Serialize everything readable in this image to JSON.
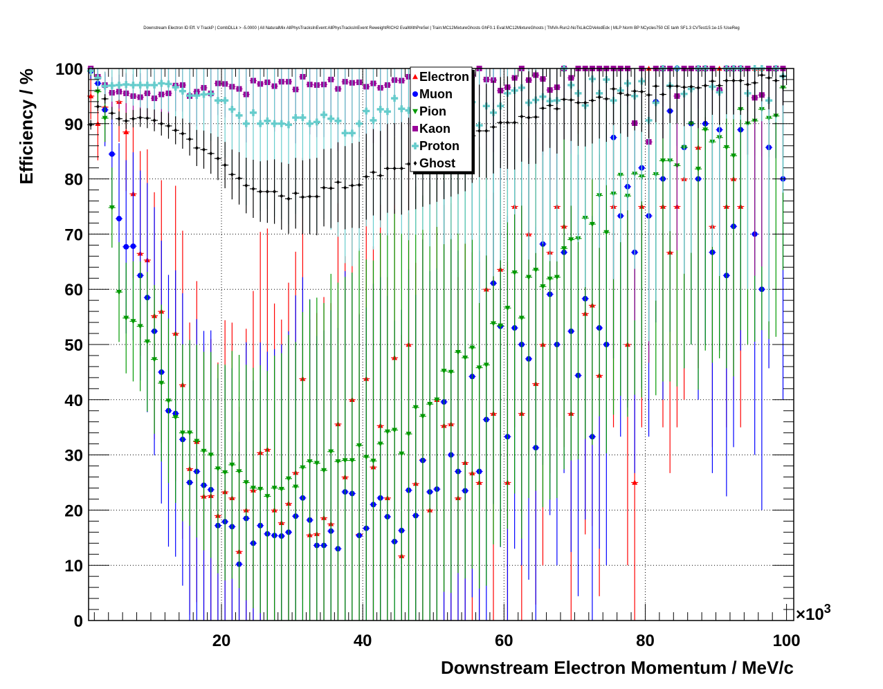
{
  "chart_data": {
    "type": "scatter",
    "title": "Downstream Electron ID Eff. V TrackP | CombDLLk > -5.0000 | All NaturalMix AllPhysTracksInEvent:AllPhysTracksInEvent ReweightRICH2 EvalWithPreSel | Train:MC12MixtureGhosts GhF0.1 Eval:MC12MixtureGhosts | TMVA-Run2-NoTkLikCDVelodEdx | MLP Norm BP NCycles750 CE tanh SF1.3 CVTest15:1e-15 !UseReg",
    "xlabel": "Downstream Electron Momentum / MeV/c",
    "ylabel": "Efficiency / %",
    "x_multiplier_label": "×10",
    "x_multiplier_exponent": "3",
    "xlim": [
      1.2,
      101
    ],
    "ylim": [
      0,
      100
    ],
    "xticks": [
      "20",
      "40",
      "60",
      "80",
      "100"
    ],
    "yticks": [
      "0",
      "10",
      "20",
      "30",
      "40",
      "50",
      "60",
      "70",
      "80",
      "90",
      "100"
    ],
    "grid": true,
    "legend_position": "top-center",
    "x_bins": {
      "start": 1.5,
      "step": 1,
      "count": 99
    },
    "series": [
      {
        "name": "Electron",
        "color": "#ff0000",
        "marker": "triangle-up",
        "values": [
          95,
          90,
          93,
          null,
          94,
          88.5,
          77.3,
          66.5,
          65.3,
          55.2,
          56,
          null,
          52,
          42.7,
          27.5,
          32.4,
          22.5,
          22.6,
          19,
          23.3,
          22.2,
          12.5,
          20,
          23.6,
          30.4,
          31,
          20,
          17.7,
          21.2,
          26.8,
          43.8,
          15.5,
          15.7,
          18.6,
          17.5,
          35.6,
          26,
          40,
          15.6,
          43.8,
          27.8,
          35.3,
          22.2,
          47.6,
          11.7,
          50,
          24.8,
          29.1,
          20,
          40,
          35.3,
          35.6,
          22.2,
          28.6,
          26.7,
          25,
          60,
          37.5,
          63.6,
          25,
          75,
          37.5,
          70,
          42.9,
          50,
          66.7,
          75,
          71.4,
          37.5,
          100,
          55.6,
          57.1,
          44.4,
          100,
          75,
          100,
          50,
          25,
          75,
          100,
          100,
          75,
          66.7,
          75,
          80,
          100,
          85.7,
          100,
          71.4,
          100,
          75,
          80,
          75,
          100,
          100,
          100,
          100,
          100,
          100
        ]
      },
      {
        "name": "Muon",
        "color": "#0000ff",
        "marker": "circle",
        "values": [
          99.5,
          97.3,
          92.5,
          84.5,
          72.8,
          67.7,
          67.8,
          62.5,
          58.5,
          52.4,
          45,
          38,
          37.5,
          32.8,
          25,
          27,
          24.5,
          23.7,
          17.2,
          17.9,
          17,
          10.2,
          18.5,
          14,
          17.2,
          15.7,
          15.4,
          15.3,
          16,
          18.9,
          22.2,
          18.2,
          13.6,
          13.6,
          16.2,
          13,
          23.3,
          23,
          15.4,
          16.7,
          21,
          22.2,
          18.8,
          14.3,
          16.3,
          23.6,
          19,
          29,
          23.3,
          23.8,
          39.6,
          30,
          27,
          23.5,
          44.2,
          27,
          36.4,
          61.1,
          53.3,
          33.3,
          53,
          50,
          47.4,
          31.3,
          68.2,
          59.1,
          50,
          66.7,
          52.4,
          44.4,
          58.3,
          33.3,
          53,
          50,
          87.5,
          73.3,
          78.6,
          66.7,
          82,
          73.3,
          94,
          80,
          92.3,
          100,
          85.7,
          90,
          80,
          90,
          66.7,
          88.9,
          62.5,
          71.4,
          88.9,
          100,
          70,
          60,
          85.7,
          100,
          80
        ]
      },
      {
        "name": "Pion",
        "color": "#009900",
        "marker": "triangle-down",
        "values": [
          99.5,
          95.8,
          91,
          74.8,
          59.5,
          54.8,
          54.2,
          53.3,
          50.5,
          47.3,
          43,
          39.8,
          36.8,
          34,
          34,
          32.5,
          30.7,
          30,
          27.5,
          26.8,
          28.2,
          27,
          25,
          24,
          23.8,
          22.5,
          24,
          23.8,
          25.7,
          24.2,
          27.7,
          28.8,
          28.5,
          27.2,
          30.6,
          28.8,
          29,
          29,
          31.7,
          29.6,
          28.9,
          32,
          34.2,
          34.5,
          30.2,
          33.8,
          38.6,
          37,
          39.2,
          40,
          45.2,
          45,
          48.6,
          47.6,
          49.4,
          45.8,
          46.3,
          53.8,
          53.4,
          56.6,
          63,
          54.8,
          62.2,
          63.5,
          60.5,
          61.9,
          62.2,
          67.4,
          69,
          69.2,
          72.9,
          71.8,
          77,
          70.3,
          77.3,
          80.7,
          76.9,
          80.9,
          80.4,
          86.7,
          80.8,
          83.3,
          83.3,
          82.4,
          85.7,
          90,
          81.8,
          88.9,
          86.7,
          87.5,
          85.7,
          84.2,
          92.6,
          90,
          90.5,
          92.6,
          91,
          91.4,
          96.5
        ]
      },
      {
        "name": "Kaon",
        "color": "#990099",
        "marker": "square",
        "values": [
          100,
          98.5,
          97,
          95.6,
          95.8,
          95.5,
          95,
          94.8,
          95.5,
          94.6,
          95.3,
          95.5,
          96.9,
          97,
          95,
          95.8,
          96.5,
          95.5,
          97.3,
          97.2,
          96.7,
          96.3,
          95.3,
          97.8,
          97.2,
          97.5,
          96.8,
          97.6,
          97.6,
          96.2,
          98.5,
          97.1,
          97,
          97.1,
          98,
          96.3,
          97.6,
          97.4,
          97.5,
          96.7,
          97.3,
          96.5,
          97,
          97.9,
          97.8,
          98.5,
          97.5,
          98,
          97,
          98.5,
          97.2,
          98,
          97.5,
          98.5,
          98.8,
          100,
          98,
          97.9,
          96,
          96.6,
          98.3,
          100,
          97.9,
          98.8,
          98.1,
          96.1,
          96.6,
          100,
          98.3,
          100,
          100,
          100,
          100,
          100,
          100,
          100,
          100,
          90.1,
          100,
          86.7,
          100,
          100,
          100,
          95,
          100,
          100,
          100,
          100,
          100,
          96.1,
          100,
          100,
          100,
          100,
          94.7,
          95.2,
          100,
          100,
          100
        ]
      },
      {
        "name": "Proton",
        "color": "#66cccc",
        "marker": "cross",
        "values": [
          99.6,
          98.3,
          96.8,
          96.9,
          97,
          97.1,
          97,
          97,
          97,
          97,
          97.3,
          97.2,
          96.6,
          95.9,
          95.1,
          95.1,
          95.3,
          95.4,
          94.2,
          94.2,
          92.6,
          91.5,
          90,
          92,
          90,
          90.5,
          90,
          90,
          89.8,
          91.1,
          91.1,
          90,
          90.3,
          91.6,
          90.9,
          90.5,
          88.3,
          88.3,
          90,
          92.3,
          90.6,
          92.6,
          92.2,
          94.6,
          92.7,
          92.4,
          93,
          93.5,
          92.5,
          94,
          93,
          93.5,
          94,
          93.5,
          93.9,
          89.7,
          93.2,
          92,
          93.2,
          95.5,
          96,
          96.5,
          93.8,
          94.3,
          94.9,
          94.1,
          94.2,
          100,
          97,
          95.5,
          93.3,
          98.1,
          95.5,
          98,
          94.2,
          96,
          97.3,
          95,
          97.7,
          90.6,
          93.8,
          100,
          96.9,
          100,
          95.4,
          96.3,
          100,
          100,
          96.7,
          95.7,
          100,
          100,
          100,
          95.5,
          100,
          100,
          94.2,
          100,
          98.6
        ]
      },
      {
        "name": "Ghost",
        "color": "#000000",
        "marker": "diamond",
        "values": [
          89.8,
          93.1,
          94.5,
          91.9,
          90.9,
          90.5,
          90.9,
          91.1,
          91,
          90.6,
          90,
          89.6,
          88.8,
          88.2,
          87.2,
          85.6,
          85.3,
          84.6,
          83.7,
          82.5,
          80.8,
          80.1,
          78.8,
          78.2,
          77.7,
          77.7,
          77.7,
          76.9,
          76.4,
          77.4,
          76.7,
          76.8,
          76.8,
          78.4,
          78.3,
          79.4,
          78.4,
          78.8,
          78.9,
          80.4,
          81.2,
          80.6,
          81.9,
          81.9,
          81.9,
          82.7,
          83,
          83.5,
          84,
          84.5,
          85,
          85.5,
          86,
          86.5,
          87.8,
          88.7,
          88.7,
          89.4,
          90.2,
          90.2,
          90.2,
          91.3,
          91.1,
          91.2,
          92.8,
          93.3,
          92.7,
          94.4,
          94.3,
          93.8,
          93.8,
          94.2,
          94.8,
          94.5,
          96.3,
          95.5,
          95.2,
          95.9,
          95.8,
          95.2,
          96.8,
          95.3,
          96.8,
          96.8,
          96.6,
          96.7,
          96.5,
          96.9,
          97.7,
          96.9,
          97.8,
          97.8,
          97.8,
          97.1,
          97.4,
          98.8,
          98.3,
          97.8,
          98.6
        ]
      }
    ]
  }
}
